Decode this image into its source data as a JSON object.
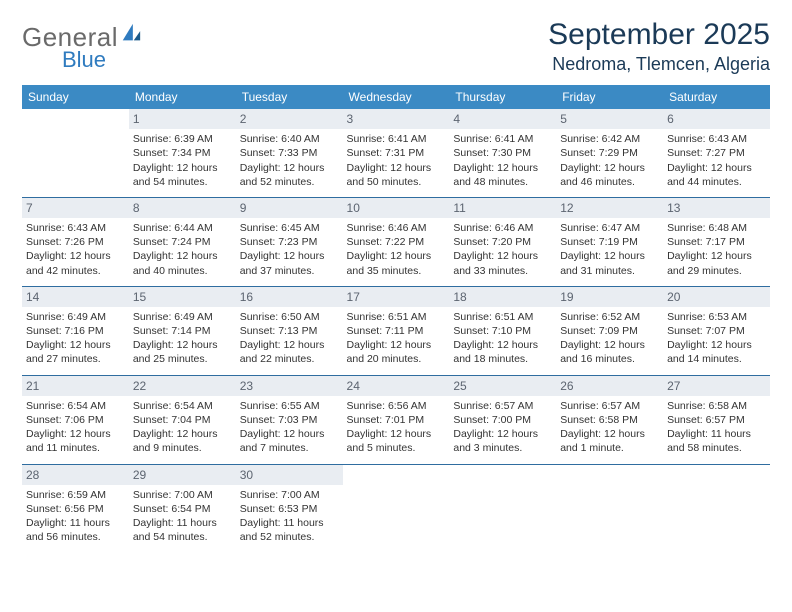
{
  "brand": {
    "line1": "General",
    "line2": "Blue",
    "colors": {
      "text1": "#6a6a6a",
      "text2": "#2f7bbf",
      "icon": "#2f7bbf"
    }
  },
  "title": "September 2025",
  "location": "Nedroma, Tlemcen, Algeria",
  "header_bg": "#3b8ac4",
  "row_border": "#2f6da0",
  "daynum_bg": "#e9edf2",
  "days": [
    "Sunday",
    "Monday",
    "Tuesday",
    "Wednesday",
    "Thursday",
    "Friday",
    "Saturday"
  ],
  "weeks": [
    [
      null,
      {
        "n": "1",
        "sr": "Sunrise: 6:39 AM",
        "ss": "Sunset: 7:34 PM",
        "d1": "Daylight: 12 hours",
        "d2": "and 54 minutes."
      },
      {
        "n": "2",
        "sr": "Sunrise: 6:40 AM",
        "ss": "Sunset: 7:33 PM",
        "d1": "Daylight: 12 hours",
        "d2": "and 52 minutes."
      },
      {
        "n": "3",
        "sr": "Sunrise: 6:41 AM",
        "ss": "Sunset: 7:31 PM",
        "d1": "Daylight: 12 hours",
        "d2": "and 50 minutes."
      },
      {
        "n": "4",
        "sr": "Sunrise: 6:41 AM",
        "ss": "Sunset: 7:30 PM",
        "d1": "Daylight: 12 hours",
        "d2": "and 48 minutes."
      },
      {
        "n": "5",
        "sr": "Sunrise: 6:42 AM",
        "ss": "Sunset: 7:29 PM",
        "d1": "Daylight: 12 hours",
        "d2": "and 46 minutes."
      },
      {
        "n": "6",
        "sr": "Sunrise: 6:43 AM",
        "ss": "Sunset: 7:27 PM",
        "d1": "Daylight: 12 hours",
        "d2": "and 44 minutes."
      }
    ],
    [
      {
        "n": "7",
        "sr": "Sunrise: 6:43 AM",
        "ss": "Sunset: 7:26 PM",
        "d1": "Daylight: 12 hours",
        "d2": "and 42 minutes."
      },
      {
        "n": "8",
        "sr": "Sunrise: 6:44 AM",
        "ss": "Sunset: 7:24 PM",
        "d1": "Daylight: 12 hours",
        "d2": "and 40 minutes."
      },
      {
        "n": "9",
        "sr": "Sunrise: 6:45 AM",
        "ss": "Sunset: 7:23 PM",
        "d1": "Daylight: 12 hours",
        "d2": "and 37 minutes."
      },
      {
        "n": "10",
        "sr": "Sunrise: 6:46 AM",
        "ss": "Sunset: 7:22 PM",
        "d1": "Daylight: 12 hours",
        "d2": "and 35 minutes."
      },
      {
        "n": "11",
        "sr": "Sunrise: 6:46 AM",
        "ss": "Sunset: 7:20 PM",
        "d1": "Daylight: 12 hours",
        "d2": "and 33 minutes."
      },
      {
        "n": "12",
        "sr": "Sunrise: 6:47 AM",
        "ss": "Sunset: 7:19 PM",
        "d1": "Daylight: 12 hours",
        "d2": "and 31 minutes."
      },
      {
        "n": "13",
        "sr": "Sunrise: 6:48 AM",
        "ss": "Sunset: 7:17 PM",
        "d1": "Daylight: 12 hours",
        "d2": "and 29 minutes."
      }
    ],
    [
      {
        "n": "14",
        "sr": "Sunrise: 6:49 AM",
        "ss": "Sunset: 7:16 PM",
        "d1": "Daylight: 12 hours",
        "d2": "and 27 minutes."
      },
      {
        "n": "15",
        "sr": "Sunrise: 6:49 AM",
        "ss": "Sunset: 7:14 PM",
        "d1": "Daylight: 12 hours",
        "d2": "and 25 minutes."
      },
      {
        "n": "16",
        "sr": "Sunrise: 6:50 AM",
        "ss": "Sunset: 7:13 PM",
        "d1": "Daylight: 12 hours",
        "d2": "and 22 minutes."
      },
      {
        "n": "17",
        "sr": "Sunrise: 6:51 AM",
        "ss": "Sunset: 7:11 PM",
        "d1": "Daylight: 12 hours",
        "d2": "and 20 minutes."
      },
      {
        "n": "18",
        "sr": "Sunrise: 6:51 AM",
        "ss": "Sunset: 7:10 PM",
        "d1": "Daylight: 12 hours",
        "d2": "and 18 minutes."
      },
      {
        "n": "19",
        "sr": "Sunrise: 6:52 AM",
        "ss": "Sunset: 7:09 PM",
        "d1": "Daylight: 12 hours",
        "d2": "and 16 minutes."
      },
      {
        "n": "20",
        "sr": "Sunrise: 6:53 AM",
        "ss": "Sunset: 7:07 PM",
        "d1": "Daylight: 12 hours",
        "d2": "and 14 minutes."
      }
    ],
    [
      {
        "n": "21",
        "sr": "Sunrise: 6:54 AM",
        "ss": "Sunset: 7:06 PM",
        "d1": "Daylight: 12 hours",
        "d2": "and 11 minutes."
      },
      {
        "n": "22",
        "sr": "Sunrise: 6:54 AM",
        "ss": "Sunset: 7:04 PM",
        "d1": "Daylight: 12 hours",
        "d2": "and 9 minutes."
      },
      {
        "n": "23",
        "sr": "Sunrise: 6:55 AM",
        "ss": "Sunset: 7:03 PM",
        "d1": "Daylight: 12 hours",
        "d2": "and 7 minutes."
      },
      {
        "n": "24",
        "sr": "Sunrise: 6:56 AM",
        "ss": "Sunset: 7:01 PM",
        "d1": "Daylight: 12 hours",
        "d2": "and 5 minutes."
      },
      {
        "n": "25",
        "sr": "Sunrise: 6:57 AM",
        "ss": "Sunset: 7:00 PM",
        "d1": "Daylight: 12 hours",
        "d2": "and 3 minutes."
      },
      {
        "n": "26",
        "sr": "Sunrise: 6:57 AM",
        "ss": "Sunset: 6:58 PM",
        "d1": "Daylight: 12 hours",
        "d2": "and 1 minute."
      },
      {
        "n": "27",
        "sr": "Sunrise: 6:58 AM",
        "ss": "Sunset: 6:57 PM",
        "d1": "Daylight: 11 hours",
        "d2": "and 58 minutes."
      }
    ],
    [
      {
        "n": "28",
        "sr": "Sunrise: 6:59 AM",
        "ss": "Sunset: 6:56 PM",
        "d1": "Daylight: 11 hours",
        "d2": "and 56 minutes."
      },
      {
        "n": "29",
        "sr": "Sunrise: 7:00 AM",
        "ss": "Sunset: 6:54 PM",
        "d1": "Daylight: 11 hours",
        "d2": "and 54 minutes."
      },
      {
        "n": "30",
        "sr": "Sunrise: 7:00 AM",
        "ss": "Sunset: 6:53 PM",
        "d1": "Daylight: 11 hours",
        "d2": "and 52 minutes."
      },
      null,
      null,
      null,
      null
    ]
  ]
}
